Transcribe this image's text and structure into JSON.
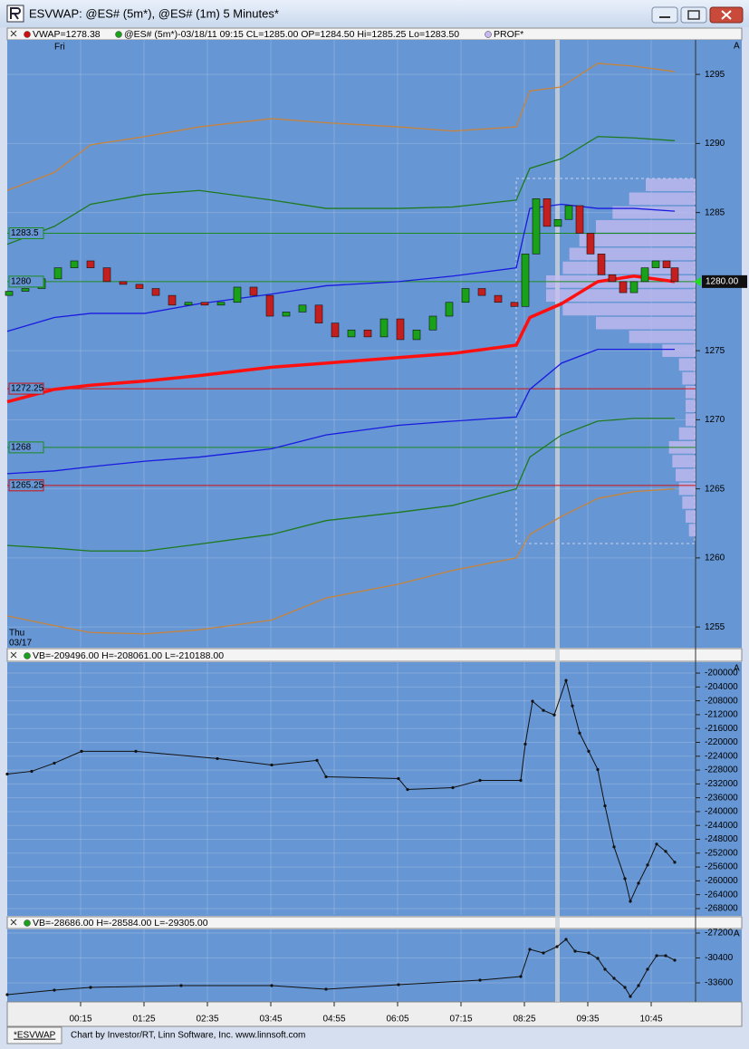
{
  "window": {
    "title": "ESVWAP: @ES# (5m*), @ES# (1m) 5 Minutes*",
    "scale_button": "A",
    "day_top": "Fri",
    "day_bottom": "Thu",
    "date_bottom": "03/17",
    "footer_tab": "*ESVWAP",
    "footer": "Chart by Investor/RT, Linn Software, Inc. www.linnsoft.com"
  },
  "chart_data": [
    {
      "type": "candlestick",
      "legend": [
        "VWAP=1278.38",
        "@ES# (5m*)-03/18/11 09:15 CL=1285.00 OP=1284.50 Hi=1285.25 Lo=1283.50",
        "PROF*"
      ],
      "legend_colors": [
        "#d01010",
        "#19a119",
        "#c8b8f0"
      ],
      "xlim": [
        -66,
        694
      ],
      "ylim": [
        1253.5,
        1297.5
      ],
      "yticks": [
        1255,
        1260,
        1265,
        1270,
        1275,
        1280,
        1285,
        1290,
        1295
      ],
      "x": [
        -66,
        -14,
        26,
        86,
        146,
        226,
        286,
        366,
        426,
        496,
        511,
        546,
        586,
        626,
        671
      ],
      "series": [
        {
          "color": "#c8843c",
          "values": [
            1286.6,
            1287.9,
            1289.9,
            1290.5,
            1291.2,
            1291.8,
            1291.5,
            1291.2,
            1290.9,
            1291.2,
            1293.8,
            1294.1,
            1295.8,
            1295.6,
            1295.2
          ]
        },
        {
          "color": "#1e7a1e",
          "values": [
            1282.7,
            1284.0,
            1285.6,
            1286.3,
            1286.6,
            1285.9,
            1285.3,
            1285.3,
            1285.4,
            1285.9,
            1288.2,
            1288.9,
            1290.5,
            1290.4,
            1290.2
          ]
        },
        {
          "color": "#1a1ae0",
          "values": [
            1276.4,
            1277.4,
            1277.7,
            1277.7,
            1278.4,
            1279.1,
            1279.7,
            1280.0,
            1280.4,
            1281.0,
            1285.3,
            1285.6,
            1285.3,
            1285.3,
            1285.1
          ]
        },
        {
          "color": "#ff1010",
          "values": [
            1271.3,
            1272.2,
            1272.5,
            1272.8,
            1273.2,
            1273.8,
            1274.1,
            1274.5,
            1274.8,
            1275.4,
            1277.4,
            1278.4,
            1280.0,
            1280.4,
            1280.0
          ]
        },
        {
          "color": "#1a1ae0",
          "values": [
            1266.1,
            1266.3,
            1266.6,
            1267.0,
            1267.3,
            1267.9,
            1268.9,
            1269.6,
            1269.9,
            1270.2,
            1272.2,
            1274.1,
            1275.1,
            1275.1,
            1275.1
          ]
        },
        {
          "color": "#1e7a1e",
          "values": [
            1260.9,
            1260.7,
            1260.5,
            1260.5,
            1261.0,
            1261.7,
            1262.7,
            1263.3,
            1263.8,
            1265.0,
            1267.3,
            1268.9,
            1269.9,
            1270.1,
            1270.1
          ]
        },
        {
          "color": "#c8843c",
          "values": [
            1255.8,
            1255.1,
            1254.6,
            1254.5,
            1254.8,
            1255.5,
            1257.1,
            1258.1,
            1259.1,
            1260.0,
            1261.7,
            1263.0,
            1264.3,
            1264.8,
            1265.0
          ]
        }
      ],
      "candles": {
        "up_color": "#19a119",
        "down_color": "#c41e1e",
        "x": [
          -64,
          -46,
          -28,
          -10,
          8,
          26,
          44,
          62,
          80,
          98,
          116,
          134,
          152,
          170,
          188,
          206,
          224,
          242,
          260,
          278,
          296,
          314,
          332,
          350,
          368,
          386,
          404,
          422,
          440,
          458,
          476,
          494,
          506,
          518,
          530,
          542,
          554,
          566,
          578,
          590,
          602,
          614,
          626,
          638,
          650,
          662,
          671
        ],
        "open": [
          1279.0,
          1279.3,
          1279.5,
          1280.2,
          1281.0,
          1281.5,
          1281.0,
          1280.0,
          1279.8,
          1279.5,
          1279.0,
          1278.3,
          1278.5,
          1278.3,
          1278.5,
          1279.6,
          1279.0,
          1277.5,
          1277.8,
          1278.3,
          1277.0,
          1276.0,
          1276.5,
          1276.0,
          1277.3,
          1275.8,
          1276.5,
          1277.5,
          1278.5,
          1279.5,
          1279.0,
          1278.5,
          1278.2,
          1282.0,
          1286.0,
          1284.0,
          1284.5,
          1285.5,
          1283.5,
          1282.0,
          1280.5,
          1280.0,
          1279.2,
          1280.0,
          1281.0,
          1281.5,
          1281.0
        ],
        "close": [
          1279.3,
          1279.5,
          1280.2,
          1281.0,
          1281.5,
          1281.0,
          1280.0,
          1279.8,
          1279.5,
          1279.0,
          1278.3,
          1278.5,
          1278.3,
          1278.5,
          1279.6,
          1279.0,
          1277.5,
          1277.8,
          1278.3,
          1277.0,
          1276.0,
          1276.5,
          1276.0,
          1277.3,
          1275.8,
          1276.5,
          1277.5,
          1278.5,
          1279.5,
          1279.0,
          1278.5,
          1278.2,
          1282.0,
          1286.0,
          1284.0,
          1284.5,
          1285.5,
          1283.5,
          1282.0,
          1280.5,
          1280.0,
          1279.2,
          1280.0,
          1281.0,
          1281.5,
          1281.0,
          1280.0
        ]
      },
      "levels": [
        {
          "value": 1283.5,
          "color": "#1e8a1e"
        },
        {
          "value": 1280,
          "color": "#1e8a1e"
        },
        {
          "value": 1272.25,
          "color": "#d01010"
        },
        {
          "value": 1268,
          "color": "#1e8a1e"
        },
        {
          "value": 1265.25,
          "color": "#d01010"
        }
      ],
      "last": {
        "value": 1280,
        "label": "1280.00",
        "color": "#22dd22"
      },
      "profile": {
        "color": "#c8bcf0",
        "prices": [
          1262,
          1263,
          1264,
          1265,
          1266,
          1267,
          1268,
          1269,
          1270,
          1271,
          1272,
          1273,
          1274,
          1275,
          1276,
          1277,
          1278,
          1279,
          1280,
          1281,
          1282,
          1283,
          1284,
          1285,
          1286,
          1287
        ],
        "values": [
          2,
          3,
          4,
          5,
          6,
          7,
          8,
          5,
          3,
          3,
          3,
          4,
          5,
          10,
          20,
          30,
          40,
          45,
          45,
          40,
          38,
          35,
          30,
          25,
          20,
          15
        ]
      }
    },
    {
      "type": "line",
      "title": "VB=-209496.00 H=-208061.00 L=-210188.00",
      "xlim": [
        -66,
        694
      ],
      "ylim": [
        -269840,
        -196850
      ],
      "yticks": [
        -200000,
        -204000,
        -208000,
        -212000,
        -216000,
        -220000,
        -224000,
        -228000,
        -232000,
        -236000,
        -240000,
        -244000,
        -248000,
        -252000,
        -256000,
        -260000,
        -264000,
        -268000
      ],
      "x": [
        -66,
        -39,
        -14,
        16,
        76,
        166,
        226,
        276,
        286,
        366,
        376,
        426,
        456,
        501,
        506,
        514,
        526,
        538,
        551,
        558,
        566,
        576,
        586,
        594,
        604,
        616,
        622,
        631,
        641,
        651,
        661,
        671
      ],
      "series": [
        {
          "color": "#111111",
          "values": [
            -229150,
            -228360,
            -226000,
            -222590,
            -222590,
            -224690,
            -226530,
            -225210,
            -229940,
            -230470,
            -233620,
            -233090,
            -230990,
            -230990,
            -220490,
            -208140,
            -210770,
            -212080,
            -202100,
            -209460,
            -217330,
            -222590,
            -227840,
            -238350,
            -250170,
            -259360,
            -265920,
            -260670,
            -255420,
            -249380,
            -251480,
            -254630
          ]
        }
      ]
    },
    {
      "type": "line",
      "title": "VB=-28686.00 H=-28584.00 L=-29305.00",
      "xlim": [
        -66,
        694
      ],
      "ylim": [
        -36044,
        -26735
      ],
      "yticks": [
        -27200,
        -30400,
        -33600
      ],
      "xticks": [
        {
          "value": 15,
          "label": "00:15"
        },
        {
          "value": 85,
          "label": "01:25"
        },
        {
          "value": 155,
          "label": "02:35"
        },
        {
          "value": 225,
          "label": "03:45"
        },
        {
          "value": 295,
          "label": "04:55"
        },
        {
          "value": 365,
          "label": "06:05"
        },
        {
          "value": 435,
          "label": "07:15"
        },
        {
          "value": 505,
          "label": "08:25"
        },
        {
          "value": 575,
          "label": "09:35"
        },
        {
          "value": 645,
          "label": "10:45"
        }
      ],
      "x": [
        -66,
        -14,
        26,
        126,
        226,
        286,
        366,
        456,
        501,
        511,
        526,
        541,
        551,
        561,
        576,
        586,
        594,
        604,
        616,
        622,
        631,
        641,
        651,
        661,
        671
      ],
      "series": [
        {
          "color": "#111111",
          "values": [
            -35110,
            -34530,
            -34180,
            -33950,
            -33950,
            -34410,
            -33830,
            -33250,
            -32790,
            -29290,
            -29760,
            -28950,
            -28010,
            -29530,
            -29760,
            -30460,
            -31850,
            -33020,
            -34180,
            -35350,
            -33950,
            -31850,
            -30110,
            -30110,
            -30690
          ]
        }
      ]
    }
  ]
}
